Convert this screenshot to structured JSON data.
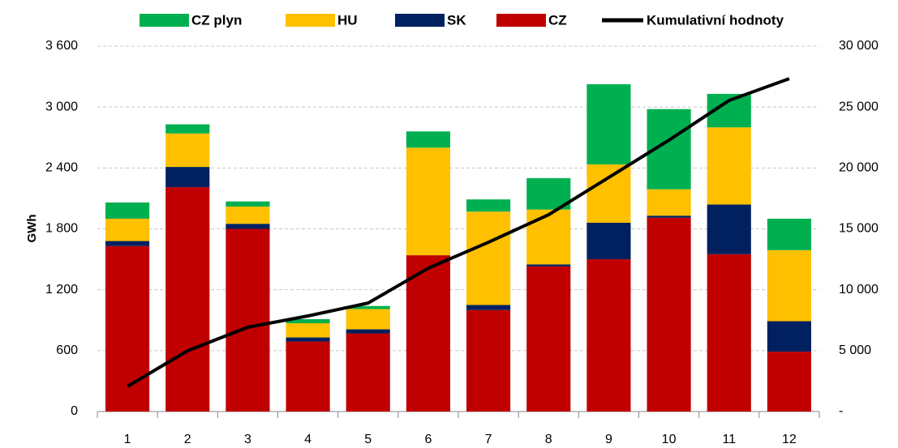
{
  "chart_data": {
    "type": "bar",
    "stacked": true,
    "categories": [
      "1",
      "2",
      "3",
      "4",
      "5",
      "6",
      "7",
      "8",
      "9",
      "10",
      "11",
      "12"
    ],
    "series": [
      {
        "name": "CZ",
        "color": "#c00000",
        "values": [
          1630,
          2210,
          1800,
          690,
          770,
          1540,
          1000,
          1430,
          1500,
          1910,
          1550,
          590
        ]
      },
      {
        "name": "SK",
        "color": "#002060",
        "values": [
          50,
          200,
          50,
          40,
          40,
          0,
          50,
          20,
          360,
          20,
          490,
          300
        ]
      },
      {
        "name": "HU",
        "color": "#ffc000",
        "values": [
          220,
          330,
          170,
          140,
          200,
          1060,
          920,
          540,
          575,
          260,
          760,
          700
        ]
      },
      {
        "name": "CZ plyn",
        "color": "#00b050",
        "values": [
          160,
          90,
          50,
          40,
          30,
          160,
          120,
          310,
          790,
          790,
          330,
          310
        ]
      },
      {
        "name": "Kumulativní hodnoty",
        "color": "#000000",
        "type": "line",
        "axis": "y2",
        "values": [
          2060,
          4990,
          6920,
          7850,
          8910,
          11770,
          13900,
          16160,
          19220,
          22280,
          25540,
          27330
        ]
      }
    ],
    "ylabel": "GWh",
    "ylim": [
      0,
      3600
    ],
    "yticks": [
      0,
      {
        "value": 600,
        "label": "600"
      },
      {
        "value": 1200,
        "label": "1 200"
      },
      {
        "value": 1800,
        "label": "1 800"
      },
      {
        "value": 2400,
        "label": "2 400"
      },
      {
        "value": 3000,
        "label": "3 000"
      },
      {
        "value": 3600,
        "label": "3 600"
      }
    ],
    "y2lim": [
      0,
      30000
    ],
    "y2ticks": [
      {
        "value": 0,
        "label": "-"
      },
      {
        "value": 5000,
        "label": "5 000"
      },
      {
        "value": 10000,
        "label": "10 000"
      },
      {
        "value": 15000,
        "label": "15 000"
      },
      {
        "value": 20000,
        "label": "20 000"
      },
      {
        "value": 25000,
        "label": "25 000"
      },
      {
        "value": 30000,
        "label": "30 000"
      }
    ],
    "grid": true,
    "legend": "top"
  }
}
